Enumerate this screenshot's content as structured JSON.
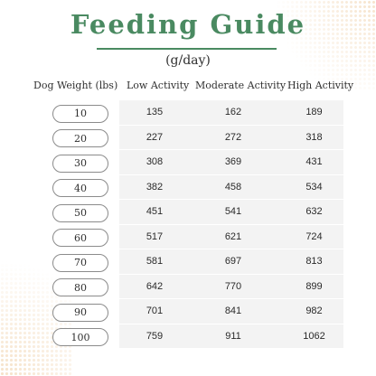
{
  "title": "Feeding Guide",
  "subtitle": "(g/day)",
  "headers": {
    "weight": "Dog Weight (lbs)",
    "low": "Low Activity",
    "moderate": "Moderate Activity",
    "high": "High Activity"
  },
  "rows": [
    {
      "weight": "10",
      "low": "135",
      "moderate": "162",
      "high": "189"
    },
    {
      "weight": "20",
      "low": "227",
      "moderate": "272",
      "high": "318"
    },
    {
      "weight": "30",
      "low": "308",
      "moderate": "369",
      "high": "431"
    },
    {
      "weight": "40",
      "low": "382",
      "moderate": "458",
      "high": "534"
    },
    {
      "weight": "50",
      "low": "451",
      "moderate": "541",
      "high": "632"
    },
    {
      "weight": "60",
      "low": "517",
      "moderate": "621",
      "high": "724"
    },
    {
      "weight": "70",
      "low": "581",
      "moderate": "697",
      "high": "813"
    },
    {
      "weight": "80",
      "low": "642",
      "moderate": "770",
      "high": "899"
    },
    {
      "weight": "90",
      "low": "701",
      "moderate": "841",
      "high": "982"
    },
    {
      "weight": "100",
      "low": "759",
      "moderate": "911",
      "high": "1062"
    }
  ],
  "colors": {
    "accent": "#4a8a61",
    "table_bg": "#f3f3f3",
    "pill_border": "#8b8b8b",
    "dot_pattern": "#f3dabA"
  }
}
